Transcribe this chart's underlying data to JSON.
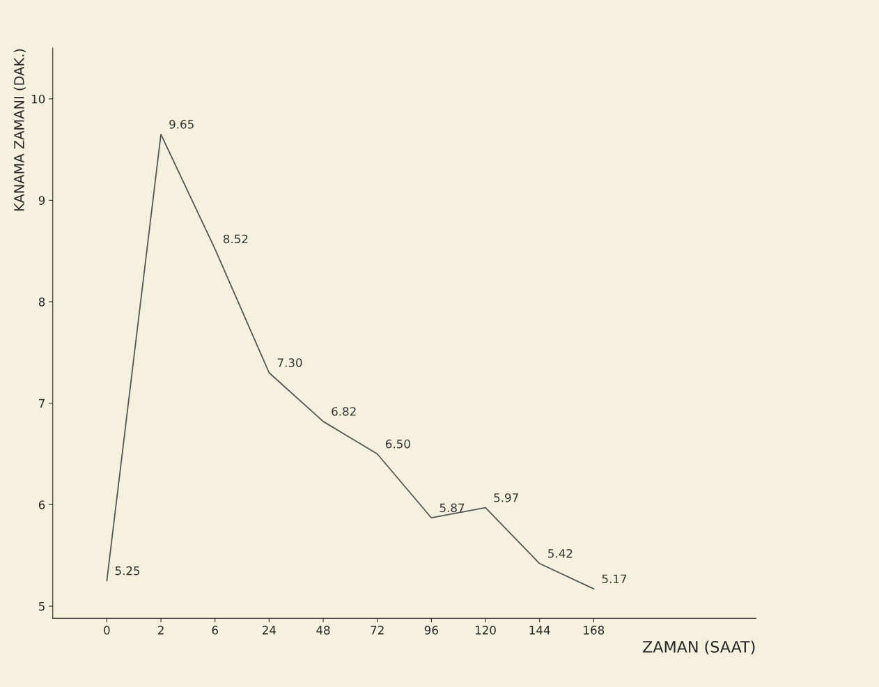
{
  "chart_data": {
    "type": "line",
    "xlabel": "ZAMAN (SAAT)",
    "ylabel": "KANAMA ZAMANI (DAK.)",
    "categories": [
      "0",
      "2",
      "6",
      "24",
      "48",
      "72",
      "96",
      "120",
      "144",
      "168"
    ],
    "series": [
      {
        "color": "#555555",
        "values": [
          5.25,
          9.65,
          8.52,
          7.3,
          6.82,
          6.5,
          5.87,
          5.97,
          5.42,
          5.17
        ]
      }
    ],
    "value_labels": [
      "5.25",
      "9.65",
      "8.52",
      "7.30",
      "6.82",
      "6.50",
      "5.87",
      "5.97",
      "5.42",
      "5.17"
    ],
    "ylim": [
      4.88,
      10.5
    ],
    "yticks": [
      5,
      6,
      7,
      8,
      9,
      10
    ],
    "grid": false,
    "marker": "none",
    "line_style": "solid"
  }
}
